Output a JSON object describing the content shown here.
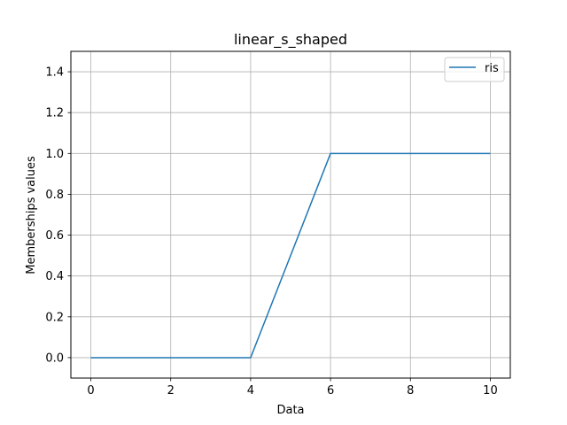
{
  "chart_data": {
    "type": "line",
    "title": "linear_s_shaped",
    "xlabel": "Data",
    "ylabel": "Memberships values",
    "xlim": [
      -0.5,
      10.5
    ],
    "ylim": [
      -0.1,
      1.5
    ],
    "xticks": [
      0,
      2,
      4,
      6,
      8,
      10
    ],
    "xtick_labels": [
      "0",
      "2",
      "4",
      "6",
      "8",
      "10"
    ],
    "yticks": [
      0.0,
      0.2,
      0.4,
      0.6,
      0.8,
      1.0,
      1.2,
      1.4
    ],
    "ytick_labels": [
      "0.0",
      "0.2",
      "0.4",
      "0.6",
      "0.8",
      "1.0",
      "1.2",
      "1.4"
    ],
    "grid": true,
    "legend": "top-right",
    "series": [
      {
        "name": "ris",
        "color": "#1f77b4",
        "x": [
          0,
          4,
          6,
          10
        ],
        "y": [
          0.0,
          0.0,
          1.0,
          1.0
        ]
      }
    ]
  }
}
